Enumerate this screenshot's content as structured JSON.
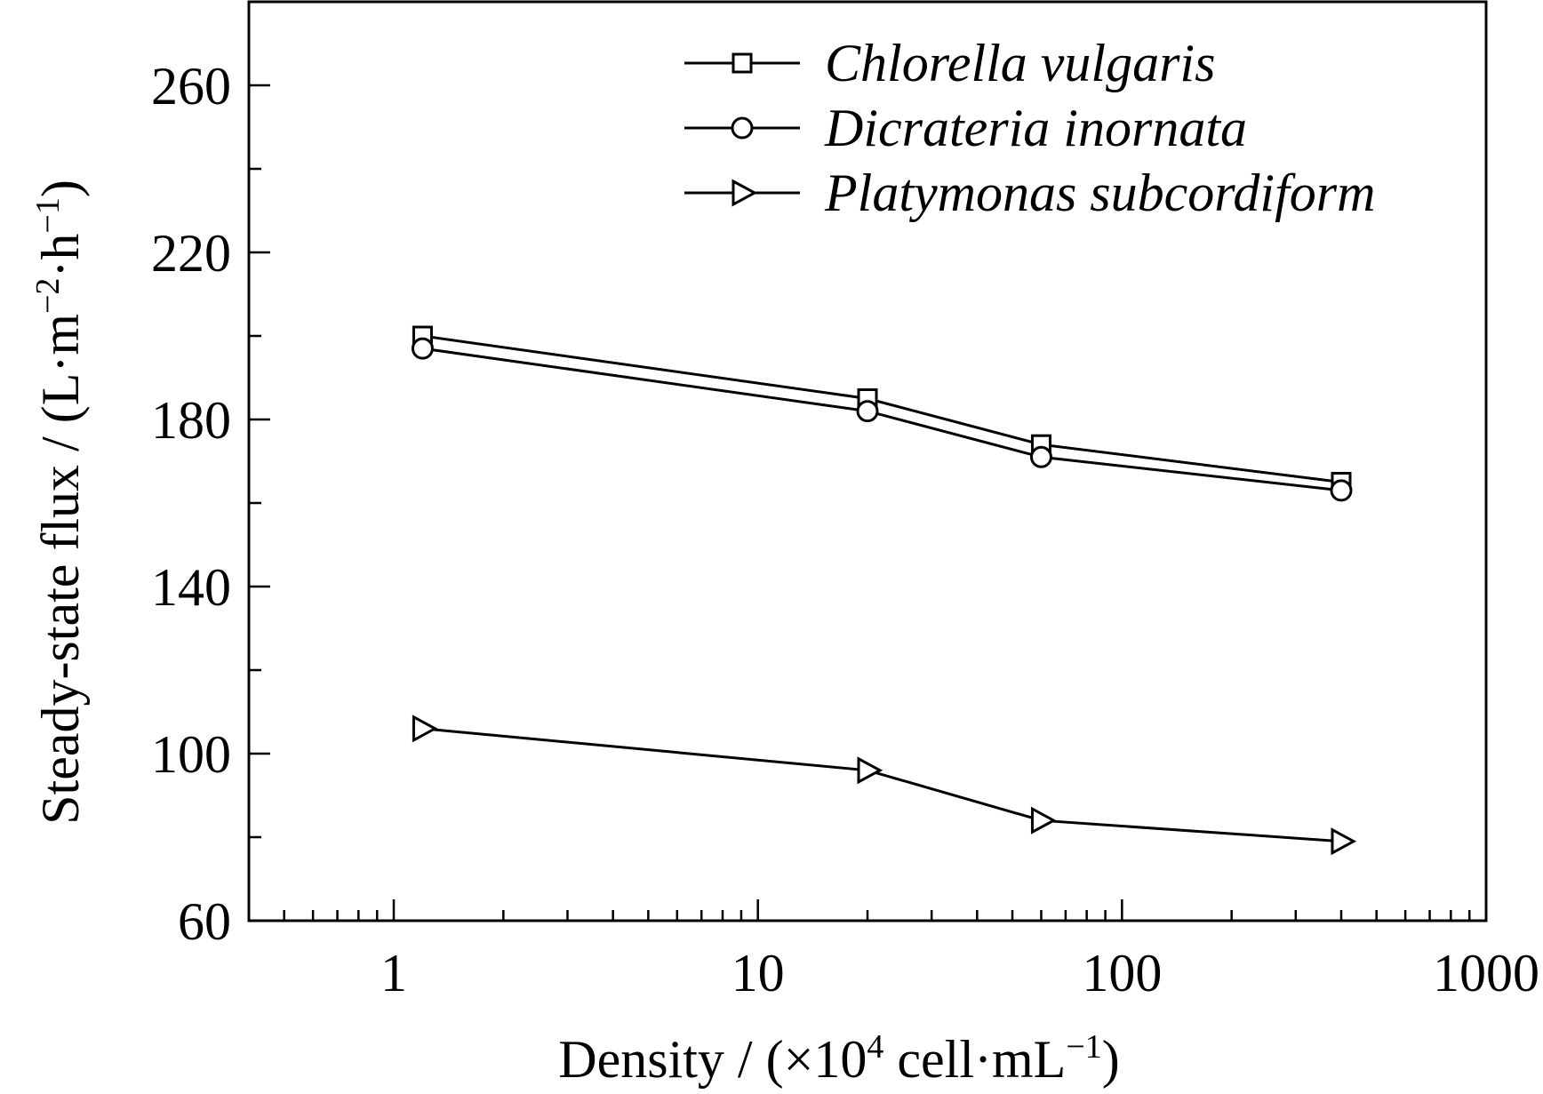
{
  "chart_data": {
    "type": "line",
    "title": "",
    "xlabel": {
      "prefix": "Density / (×10",
      "sup": "4",
      "middle": " cell·mL",
      "sup2": "−1",
      "suffix": ")"
    },
    "ylabel": {
      "prefix": "Steady-state flux / (L·m",
      "sup": "−2",
      "middle": "·h",
      "sup2": "−1",
      "suffix": ")"
    },
    "xscale": "log",
    "xlim": [
      0.4,
      1000
    ],
    "ylim": [
      60,
      280
    ],
    "xticks": [
      1,
      10,
      100,
      1000
    ],
    "xtick_labels": [
      "1",
      "10",
      "100",
      "1000"
    ],
    "yticks": [
      60,
      100,
      140,
      180,
      220,
      260
    ],
    "ytick_labels": [
      "60",
      "100",
      "140",
      "180",
      "220",
      "260"
    ],
    "y_minor_step": 20,
    "grid": false,
    "legend_position": "top-right",
    "series": [
      {
        "name": "Chlorella vulgaris",
        "marker": "square",
        "x": [
          1.2,
          20,
          60,
          400
        ],
        "y": [
          200,
          185,
          174,
          165
        ]
      },
      {
        "name": "Dicrateria inornata",
        "marker": "circle",
        "x": [
          1.2,
          20,
          60,
          400
        ],
        "y": [
          197,
          182,
          171,
          163
        ]
      },
      {
        "name": "Platymonas subcordiform",
        "marker": "triangle-right",
        "x": [
          1.2,
          20,
          60,
          400
        ],
        "y": [
          106,
          96,
          84,
          79
        ]
      }
    ]
  }
}
